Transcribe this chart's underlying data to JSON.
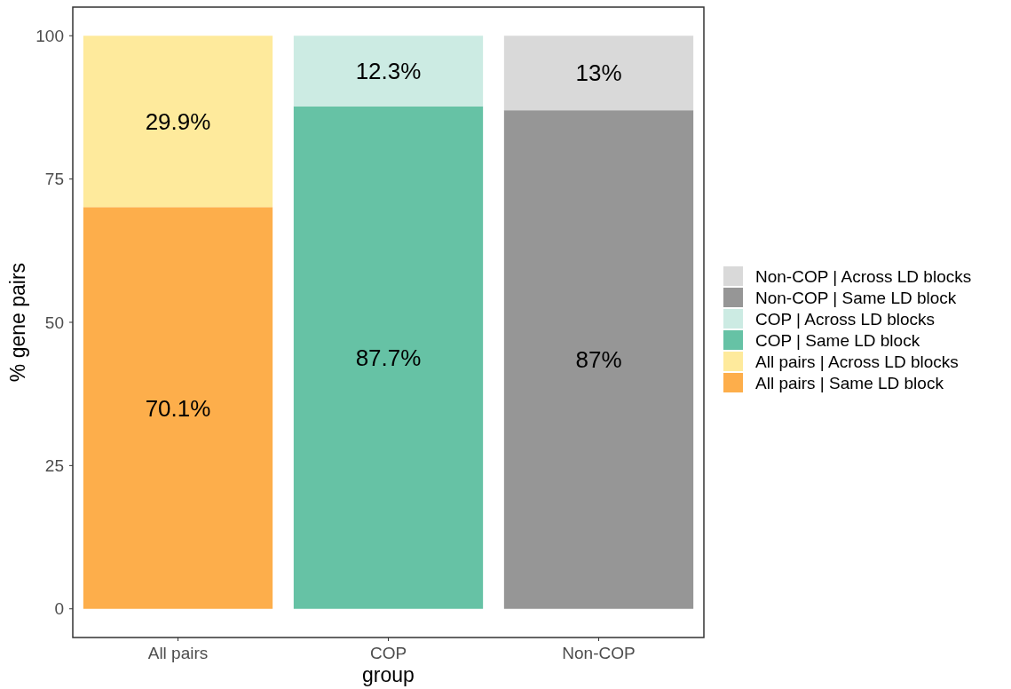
{
  "chart_data": {
    "type": "bar",
    "stacked": true,
    "xlabel": "group",
    "ylabel": "% gene pairs",
    "categories": [
      "All pairs",
      "COP",
      "Non-COP"
    ],
    "series": [
      {
        "name": "All pairs | Same LD block",
        "color": "#fdae4b",
        "values": [
          70.1,
          null,
          null
        ],
        "value_labels": [
          "70.1%",
          null,
          null
        ]
      },
      {
        "name": "All pairs | Across LD blocks",
        "color": "#feea9c",
        "values": [
          29.9,
          null,
          null
        ],
        "value_labels": [
          "29.9%",
          null,
          null
        ]
      },
      {
        "name": "COP | Same LD block",
        "color": "#66c2a5",
        "values": [
          null,
          87.7,
          null
        ],
        "value_labels": [
          null,
          "87.7%",
          null
        ]
      },
      {
        "name": "COP | Across LD blocks",
        "color": "#ccebe3",
        "values": [
          null,
          12.3,
          null
        ],
        "value_labels": [
          null,
          "12.3%",
          null
        ]
      },
      {
        "name": "Non-COP | Same LD block",
        "color": "#969696",
        "values": [
          null,
          null,
          87
        ],
        "value_labels": [
          null,
          null,
          "87%"
        ]
      },
      {
        "name": "Non-COP | Across LD blocks",
        "color": "#d9d9d9",
        "values": [
          null,
          null,
          13
        ],
        "value_labels": [
          null,
          null,
          "13%"
        ]
      }
    ],
    "ylim": [
      -5,
      105
    ],
    "yticks": [
      0,
      25,
      50,
      75,
      100
    ],
    "grid": false,
    "legend": "right"
  }
}
